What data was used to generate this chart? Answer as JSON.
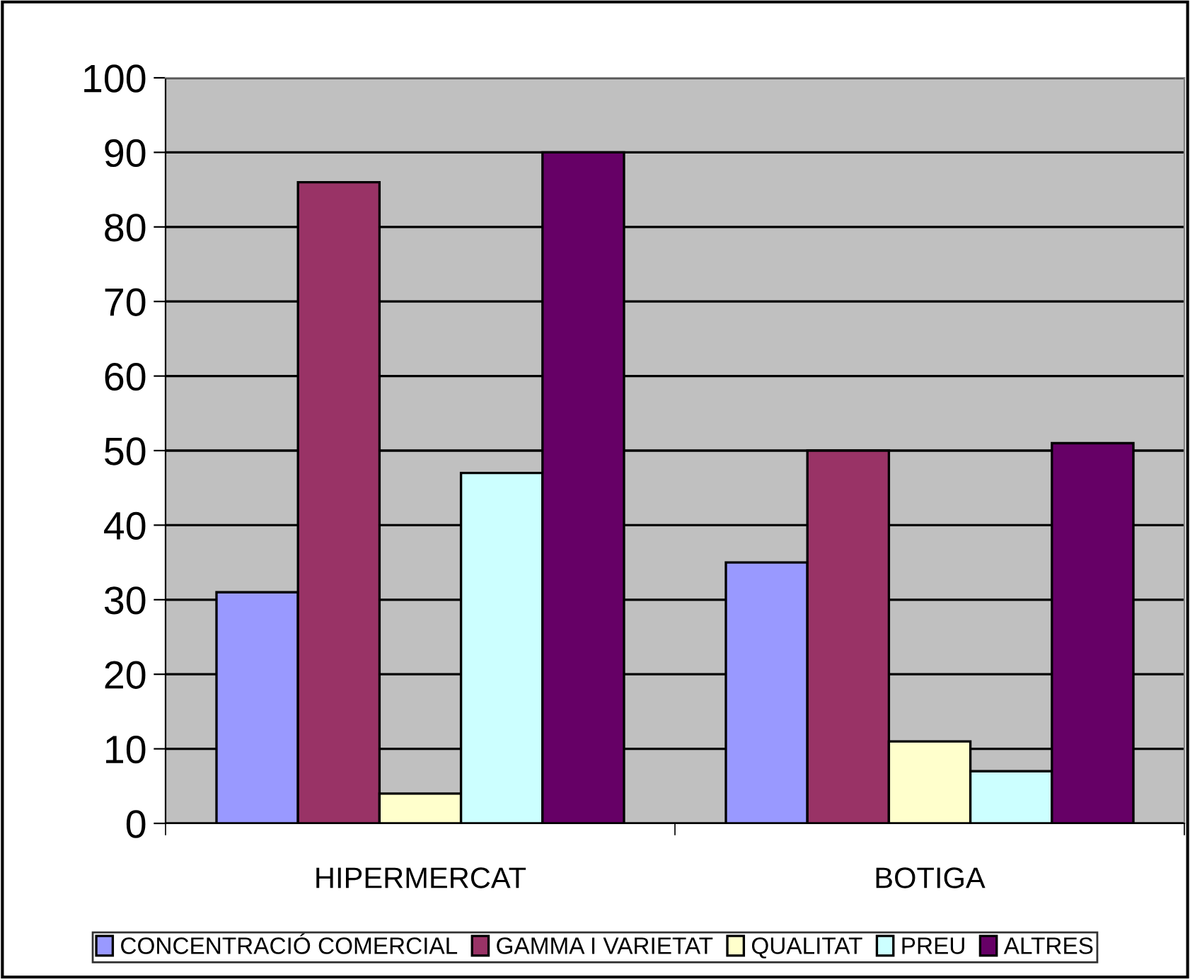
{
  "chart_data": {
    "type": "bar",
    "categories": [
      "HIPERMERCAT",
      "BOTIGA"
    ],
    "series": [
      {
        "name": "CONCENTRACIÓ COMERCIAL",
        "color": "#9999ff",
        "values": [
          31,
          35
        ]
      },
      {
        "name": "GAMMA I VARIETAT",
        "color": "#993366",
        "values": [
          86,
          50
        ]
      },
      {
        "name": "QUALITAT",
        "color": "#ffffcc",
        "values": [
          4,
          11
        ]
      },
      {
        "name": "PREU",
        "color": "#ccffff",
        "values": [
          47,
          7
        ]
      },
      {
        "name": "ALTRES",
        "color": "#660066",
        "values": [
          90,
          51
        ]
      }
    ],
    "ylim": [
      0,
      100
    ],
    "yticks": [
      0,
      10,
      20,
      30,
      40,
      50,
      60,
      70,
      80,
      90,
      100
    ],
    "grid": "y",
    "legend": "bottom"
  }
}
